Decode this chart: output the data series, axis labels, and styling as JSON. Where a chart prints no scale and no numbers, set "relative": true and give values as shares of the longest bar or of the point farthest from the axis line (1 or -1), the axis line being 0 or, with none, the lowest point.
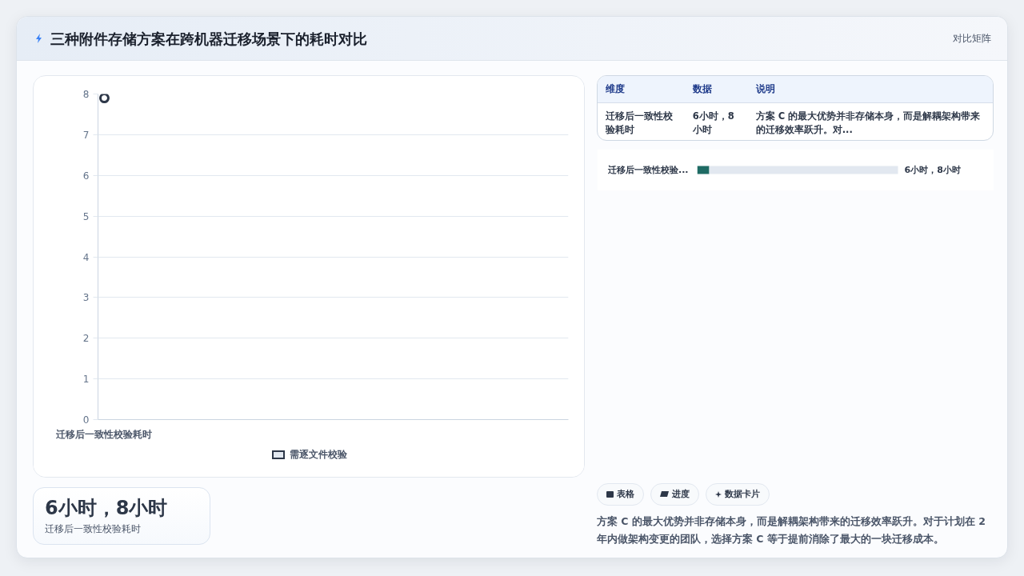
{
  "chart_data": [
    {
      "type": "other",
      "title": "三种附件存储方案在跨机器迁移场景下的耗时对比",
      "subtitle": "对比矩阵"
    },
    {
      "type": "line",
      "categories": [
        "迁移后一致性校验耗时"
      ],
      "series": [
        {
          "name": "需逐文件校验",
          "color": "#2d3748",
          "values": [
            7.9
          ]
        }
      ],
      "ylim": [
        0,
        8
      ],
      "yticks": [
        0,
        1,
        2,
        3,
        4,
        5,
        6,
        7,
        8
      ],
      "grid": "y",
      "legend": "bottom",
      "marker": "circle"
    },
    {
      "type": "other",
      "categories": [
        "维度",
        "数据",
        "说明"
      ],
      "annotations": [
        "迁移后一致性校验耗时",
        "6小时，8小时",
        "方案 C 的最大优势并非存储本身，而是解耦架构带来的迁移效率跃升。对..."
      ]
    },
    {
      "type": "bar",
      "orientation": "horizontal",
      "stacked": true,
      "relative": true,
      "categories": [
        "迁移后一致性校验..."
      ],
      "series": [
        {
          "color": "#1f6b64",
          "values": [
            0.06
          ]
        },
        {
          "color": "#e2e8f0",
          "values": [
            0.94
          ]
        }
      ],
      "annotations": [
        {
          "text": "6小时，8小时",
          "x": 1,
          "y": "迁移后一致性校验..."
        }
      ]
    },
    {
      "type": "other",
      "title": "6小时，8小时",
      "subtitle": "迁移后一致性校验耗时"
    },
    {
      "type": "other",
      "categories": [
        "表格",
        "进度",
        "数据卡片"
      ],
      "annotations": [
        "方案 C 的最大优势并非存储本身，而是解耦架构带来的迁移效率跃升。对于计划在 2 年内做架构变更的团队，选择方案 C 等于提前消除了最大的一块迁移成本。"
      ]
    }
  ]
}
